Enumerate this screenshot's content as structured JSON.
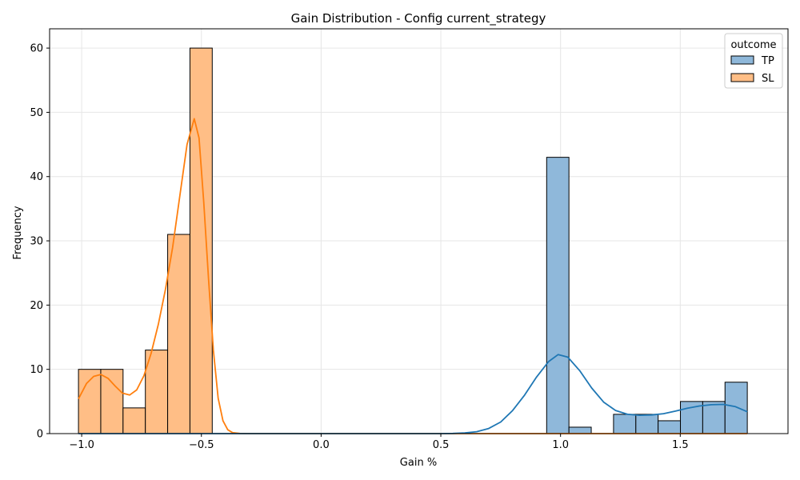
{
  "chart_data": {
    "type": "histogram",
    "title": "Gain Distribution - Config current_strategy",
    "xlabel": "Gain %",
    "ylabel": "Frequency",
    "xlim": [
      -1.134,
      1.95
    ],
    "ylim": [
      0,
      63
    ],
    "xticks": [
      -1.0,
      -0.5,
      0.0,
      0.5,
      1.0,
      1.5
    ],
    "xtick_labels": [
      "−1.0",
      "−0.5",
      "0.0",
      "0.5",
      "1.0",
      "1.5"
    ],
    "yticks": [
      0,
      10,
      20,
      30,
      40,
      50,
      60
    ],
    "ytick_labels": [
      "0",
      "10",
      "20",
      "30",
      "40",
      "50",
      "60"
    ],
    "grid": true,
    "legend": {
      "title": "outcome",
      "placement": "top-right",
      "entries": [
        "TP",
        "SL"
      ]
    },
    "bin_edges": [
      -1.0134,
      -0.9203,
      -0.8272,
      -0.734,
      -0.6409,
      -0.5478,
      -0.4547,
      -0.3616,
      -0.2685,
      -0.1754,
      -0.0822,
      0.0109,
      0.104,
      0.1971,
      0.2902,
      0.3833,
      0.4764,
      0.5695,
      0.6627,
      0.7558,
      0.8489,
      0.942,
      1.0351,
      1.1282,
      1.2213,
      1.3145,
      1.4076,
      1.5007,
      1.5938,
      1.6869,
      1.78
    ],
    "series": [
      {
        "name": "SL",
        "color": "#ff7f0e",
        "fill": "#ffbe86",
        "counts": [
          10,
          10,
          4,
          13,
          31,
          60,
          0,
          0,
          0,
          0,
          0,
          0,
          0,
          0,
          0,
          0,
          0,
          0,
          0,
          0,
          0,
          0,
          0,
          0,
          0,
          0,
          0,
          0,
          0,
          0
        ],
        "kde": [
          [
            -1.0134,
            5.4
          ],
          [
            -0.98,
            7.8
          ],
          [
            -0.95,
            8.9
          ],
          [
            -0.92,
            9.2
          ],
          [
            -0.89,
            8.6
          ],
          [
            -0.86,
            7.4
          ],
          [
            -0.83,
            6.3
          ],
          [
            -0.8,
            6.0
          ],
          [
            -0.77,
            6.8
          ],
          [
            -0.74,
            9.0
          ],
          [
            -0.71,
            12.5
          ],
          [
            -0.68,
            17.0
          ],
          [
            -0.65,
            22.5
          ],
          [
            -0.62,
            29.0
          ],
          [
            -0.59,
            37.0
          ],
          [
            -0.56,
            45.0
          ],
          [
            -0.53,
            49.0
          ],
          [
            -0.51,
            46.0
          ],
          [
            -0.49,
            36.0
          ],
          [
            -0.47,
            24.0
          ],
          [
            -0.45,
            13.0
          ],
          [
            -0.43,
            5.5
          ],
          [
            -0.41,
            2.0
          ],
          [
            -0.39,
            0.6
          ],
          [
            -0.37,
            0.15
          ],
          [
            -0.34,
            0.02
          ],
          [
            -0.3,
            0.0
          ],
          [
            1.78,
            0.0
          ]
        ]
      },
      {
        "name": "TP",
        "color": "#1f77b4",
        "fill": "#8fb8da",
        "counts": [
          0,
          0,
          0,
          0,
          0,
          0,
          0,
          0,
          0,
          0,
          0,
          0,
          0,
          0,
          0,
          0,
          0,
          0,
          0,
          0,
          0,
          43,
          1,
          0,
          3,
          3,
          2,
          5,
          5,
          8
        ],
        "kde": [
          [
            -1.0134,
            0.0
          ],
          [
            0.5,
            0.0
          ],
          [
            0.55,
            0.03
          ],
          [
            0.6,
            0.1
          ],
          [
            0.65,
            0.3
          ],
          [
            0.7,
            0.8
          ],
          [
            0.75,
            1.8
          ],
          [
            0.8,
            3.6
          ],
          [
            0.85,
            6.0
          ],
          [
            0.9,
            8.8
          ],
          [
            0.95,
            11.2
          ],
          [
            0.99,
            12.3
          ],
          [
            1.03,
            11.9
          ],
          [
            1.08,
            9.8
          ],
          [
            1.13,
            7.1
          ],
          [
            1.18,
            4.9
          ],
          [
            1.23,
            3.6
          ],
          [
            1.28,
            3.0
          ],
          [
            1.33,
            2.85
          ],
          [
            1.38,
            2.9
          ],
          [
            1.43,
            3.1
          ],
          [
            1.48,
            3.5
          ],
          [
            1.53,
            3.95
          ],
          [
            1.58,
            4.3
          ],
          [
            1.63,
            4.5
          ],
          [
            1.68,
            4.55
          ],
          [
            1.73,
            4.2
          ],
          [
            1.78,
            3.4
          ]
        ]
      }
    ]
  }
}
